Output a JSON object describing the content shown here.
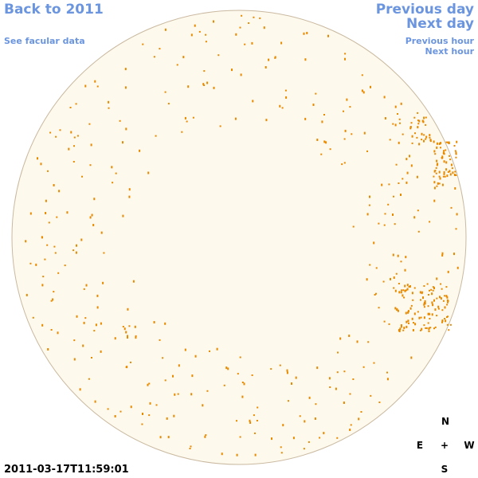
{
  "nav": {
    "back": "Back to 2011",
    "facular": "See facular data",
    "previous_day": "Previous day",
    "next_day": "Next day",
    "previous_hour": "Previous hour",
    "next_hour": "Next hour"
  },
  "timestamp": "2011-03-17T11:59:01",
  "compass": {
    "north": "N",
    "east": "E",
    "center": "+",
    "west": "W",
    "south": "S"
  }
}
